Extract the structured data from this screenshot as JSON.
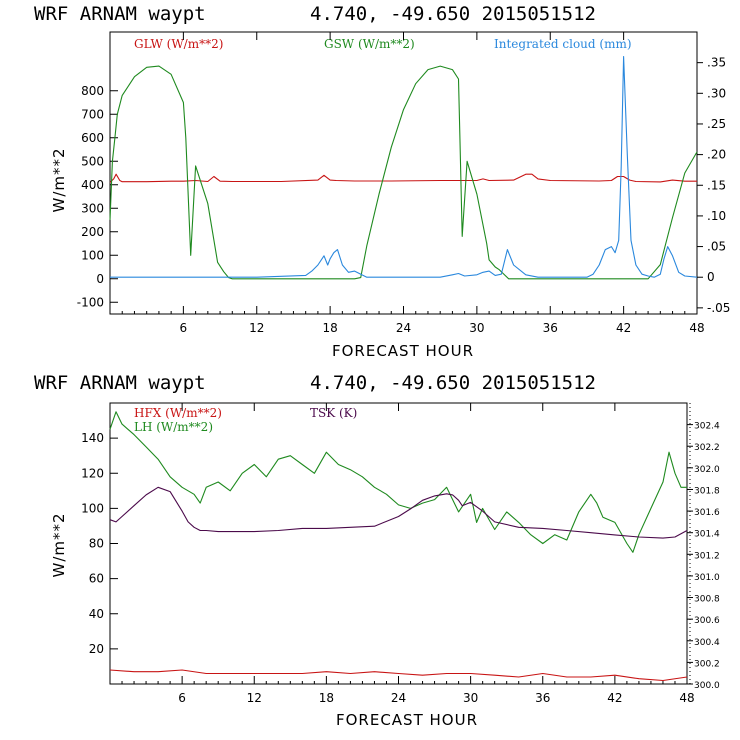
{
  "colors": {
    "red": "#c81414",
    "green": "#1f8a1f",
    "blue": "#2a88dd",
    "purple": "#4b0a4b"
  },
  "chart_data": [
    {
      "type": "line",
      "title": "WRF   ARNAM waypt     4.740, -49.650  2015051512",
      "xlabel": "FORECAST HOUR",
      "ylabel": "W/m**2",
      "xlim": [
        0,
        48
      ],
      "ylim": [
        -150,
        1050
      ],
      "y2lim": [
        -0.06,
        0.4
      ],
      "x_ticks": [
        "6",
        "12",
        "18",
        "24",
        "30",
        "36",
        "42",
        "48"
      ],
      "y_ticks": [
        "-100",
        "0",
        "100",
        "200",
        "300",
        "400",
        "500",
        "600",
        "700",
        "800"
      ],
      "y2_ticks": [
        "-.05",
        "0",
        ".05",
        ".10",
        ".15",
        ".20",
        ".25",
        ".30",
        ".35"
      ],
      "series": [
        {
          "name": "GLW (W/m**2)",
          "color": "red",
          "axis": "left",
          "x": [
            0,
            0.3,
            0.5,
            0.8,
            1,
            3,
            5,
            6,
            7,
            8,
            8.5,
            9,
            10,
            14,
            17,
            17.5,
            18,
            18.5,
            20,
            23,
            27,
            30,
            30.5,
            31,
            33,
            34,
            34.5,
            35,
            36,
            40,
            41,
            41.5,
            42,
            42.5,
            43,
            45,
            46,
            47,
            48
          ],
          "y": [
            410,
            425,
            445,
            418,
            413,
            413,
            415,
            415,
            418,
            414,
            435,
            415,
            414,
            414,
            420,
            440,
            420,
            418,
            416,
            416,
            418,
            418,
            425,
            418,
            420,
            445,
            445,
            425,
            418,
            416,
            418,
            435,
            435,
            420,
            414,
            412,
            420,
            415,
            415
          ]
        },
        {
          "name": "GSW (W/m**2)",
          "color": "green",
          "axis": "left",
          "x": [
            0,
            0.2,
            0.4,
            0.6,
            1,
            2,
            3,
            4,
            5,
            6,
            6.2,
            6.6,
            7,
            8,
            8.8,
            9.3,
            9.7,
            10,
            20,
            20.5,
            21,
            22,
            23,
            24,
            25,
            26,
            27,
            28,
            28.5,
            28.6,
            28.8,
            29.2,
            30,
            30.8,
            31,
            31.5,
            31.8,
            32.2,
            32.6,
            44,
            45,
            46,
            47,
            48
          ],
          "y": [
            250,
            500,
            600,
            700,
            780,
            860,
            900,
            905,
            870,
            750,
            600,
            100,
            480,
            320,
            70,
            30,
            5,
            0,
            0,
            5,
            140,
            360,
            560,
            720,
            830,
            890,
            905,
            890,
            850,
            620,
            180,
            500,
            360,
            150,
            80,
            50,
            40,
            20,
            0,
            0,
            60,
            260,
            450,
            540
          ]
        },
        {
          "name": "Integrated cloud (mm)",
          "color": "blue",
          "axis": "right",
          "x": [
            0,
            8,
            12,
            16,
            16.5,
            17,
            17.5,
            17.8,
            18,
            18.3,
            18.6,
            19,
            19.5,
            20,
            21,
            27,
            28,
            28.5,
            29,
            30,
            30.5,
            31,
            31.5,
            32,
            32.5,
            33,
            34,
            35,
            39,
            39.5,
            40,
            40.5,
            41,
            41.3,
            41.6,
            41.8,
            42,
            42.3,
            42.6,
            43,
            43.5,
            44,
            44.5,
            45,
            45.3,
            45.6,
            46,
            46.5,
            47,
            48
          ],
          "y": [
            0,
            0,
            0,
            0.003,
            0.01,
            0.02,
            0.035,
            0.02,
            0.03,
            0.04,
            0.045,
            0.02,
            0.008,
            0.01,
            0,
            0,
            0.004,
            0.006,
            0.002,
            0.004,
            0.008,
            0.01,
            0.003,
            0.005,
            0.045,
            0.02,
            0.004,
            0,
            0,
            0.005,
            0.02,
            0.045,
            0.05,
            0.04,
            0.06,
            0.18,
            0.36,
            0.2,
            0.06,
            0.02,
            0.005,
            0.002,
            0,
            0.005,
            0.03,
            0.05,
            0.035,
            0.008,
            0.002,
            0
          ]
        }
      ],
      "legend": "top"
    },
    {
      "type": "line",
      "title": "WRF   ARNAM waypt     4.740, -49.650  2015051512",
      "xlabel": "FORECAST HOUR",
      "ylabel": "W/m**2",
      "xlim": [
        0,
        48
      ],
      "ylim": [
        0,
        160
      ],
      "y2lim": [
        300.0,
        302.6
      ],
      "x_ticks": [
        "6",
        "12",
        "18",
        "24",
        "30",
        "36",
        "42",
        "48"
      ],
      "y_ticks": [
        "20",
        "40",
        "60",
        "80",
        "100",
        "120",
        "140"
      ],
      "y2_ticks": [
        "300.0",
        "300.2",
        "300.4",
        "300.6",
        "300.8",
        "301.0",
        "301.2",
        "301.4",
        "301.6",
        "301.8",
        "302.0",
        "302.2",
        "302.4"
      ],
      "series": [
        {
          "name": "HFX (W/m**2)",
          "color": "red",
          "axis": "left",
          "x": [
            0,
            2,
            4,
            6,
            8,
            10,
            12,
            14,
            16,
            18,
            20,
            22,
            24,
            26,
            28,
            30,
            32,
            34,
            36,
            38,
            40,
            42,
            44,
            46,
            48
          ],
          "y": [
            8,
            7,
            7,
            8,
            6,
            6,
            6,
            6,
            6,
            7,
            6,
            7,
            6,
            5,
            6,
            6,
            5,
            4,
            6,
            4,
            4,
            5,
            3,
            2,
            4
          ]
        },
        {
          "name": "LH  (W/m**2)",
          "color": "green",
          "axis": "left",
          "x": [
            0,
            0.5,
            1,
            2,
            3,
            4,
            5,
            6,
            7,
            7.5,
            8,
            9,
            10,
            11,
            12,
            13,
            14,
            15,
            16,
            17,
            18,
            19,
            20,
            21,
            22,
            23,
            24,
            25,
            26,
            27,
            28,
            29,
            30,
            30.5,
            31,
            32,
            33,
            34,
            35,
            36,
            37,
            38,
            39,
            40,
            40.5,
            41,
            42,
            43,
            43.5,
            44,
            45,
            46,
            46.5,
            47,
            47.5,
            48
          ],
          "y": [
            145,
            155,
            148,
            142,
            135,
            128,
            118,
            112,
            108,
            103,
            112,
            115,
            110,
            120,
            125,
            118,
            128,
            130,
            125,
            120,
            132,
            125,
            122,
            118,
            112,
            108,
            102,
            100,
            103,
            105,
            112,
            98,
            108,
            92,
            100,
            88,
            98,
            92,
            85,
            80,
            85,
            82,
            98,
            108,
            103,
            95,
            92,
            80,
            75,
            85,
            100,
            115,
            132,
            120,
            112,
            112
          ]
        },
        {
          "name": "TSK (K)",
          "color": "purple",
          "axis": "right",
          "x": [
            0,
            0.5,
            1,
            2,
            3,
            4,
            5,
            6,
            6.5,
            7,
            7.5,
            8,
            9,
            10,
            12,
            14,
            16,
            18,
            20,
            22,
            24,
            25,
            26,
            27,
            28,
            28.5,
            29,
            29.3,
            30,
            31,
            32,
            34,
            36,
            38,
            40,
            42,
            44,
            46,
            47,
            48
          ],
          "y": [
            301.52,
            301.5,
            301.55,
            301.65,
            301.75,
            301.82,
            301.78,
            301.6,
            301.5,
            301.45,
            301.42,
            301.42,
            301.41,
            301.41,
            301.41,
            301.42,
            301.44,
            301.44,
            301.45,
            301.46,
            301.55,
            301.62,
            301.7,
            301.74,
            301.76,
            301.75,
            301.7,
            301.65,
            301.68,
            301.6,
            301.5,
            301.45,
            301.44,
            301.42,
            301.4,
            301.38,
            301.36,
            301.35,
            301.36,
            301.42
          ]
        }
      ],
      "legend": "top"
    }
  ],
  "chart1": {
    "title_left": "WRF   ARNAM waypt",
    "title_right": "4.740, -49.650  2015051512",
    "legend": {
      "glw": "GLW (W/m**2)",
      "gsw": "GSW (W/m**2)",
      "cloud": "Integrated cloud (mm)"
    },
    "xlabel": "FORECAST HOUR",
    "ylabel": "W/m**2"
  },
  "chart2": {
    "title_left": "WRF   ARNAM waypt",
    "title_right": "4.740, -49.650  2015051512",
    "legend": {
      "hfx": "HFX (W/m**2)",
      "lh": "LH  (W/m**2)",
      "tsk": "TSK (K)"
    },
    "xlabel": "FORECAST HOUR",
    "ylabel": "W/m**2"
  }
}
